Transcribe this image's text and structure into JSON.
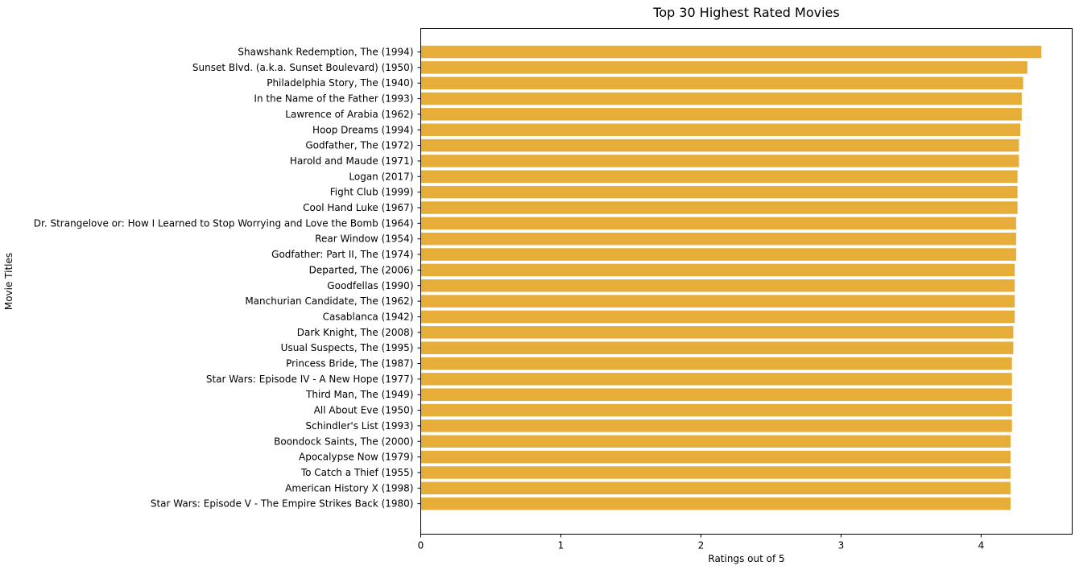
{
  "chart_data": {
    "type": "bar",
    "orientation": "horizontal",
    "title": "Top 30 Highest Rated Movies",
    "xlabel": "Ratings out of 5",
    "ylabel": "Movie Titles",
    "xlim": [
      0,
      4.65
    ],
    "xticks": [
      0,
      1,
      2,
      3,
      4
    ],
    "grid": false,
    "bar_color": "#e6ad38",
    "categories": [
      "Shawshank Redemption, The (1994)",
      "Sunset Blvd. (a.k.a. Sunset Boulevard) (1950)",
      "Philadelphia Story, The (1940)",
      "In the Name of the Father (1993)",
      "Lawrence of Arabia (1962)",
      "Hoop Dreams (1994)",
      "Godfather, The (1972)",
      "Harold and Maude (1971)",
      "Logan (2017)",
      "Fight Club (1999)",
      "Cool Hand Luke (1967)",
      "Dr. Strangelove or: How I Learned to Stop Worrying and Love the Bomb (1964)",
      "Rear Window (1954)",
      "Godfather: Part II, The (1974)",
      "Departed, The (2006)",
      "Goodfellas (1990)",
      "Manchurian Candidate, The (1962)",
      "Casablanca (1942)",
      "Dark Knight, The (2008)",
      "Usual Suspects, The (1995)",
      "Princess Bride, The (1987)",
      "Star Wars: Episode IV - A New Hope (1977)",
      "Third Man, The (1949)",
      "All About Eve (1950)",
      "Schindler's List (1993)",
      "Boondock Saints, The (2000)",
      "Apocalypse Now (1979)",
      "To Catch a Thief (1955)",
      "American History X (1998)",
      "Star Wars: Episode V - The Empire Strikes Back (1980)"
    ],
    "values": [
      4.43,
      4.33,
      4.3,
      4.29,
      4.29,
      4.28,
      4.27,
      4.27,
      4.26,
      4.26,
      4.26,
      4.25,
      4.25,
      4.25,
      4.24,
      4.24,
      4.24,
      4.24,
      4.23,
      4.23,
      4.22,
      4.22,
      4.22,
      4.22,
      4.22,
      4.21,
      4.21,
      4.21,
      4.21,
      4.21
    ]
  }
}
